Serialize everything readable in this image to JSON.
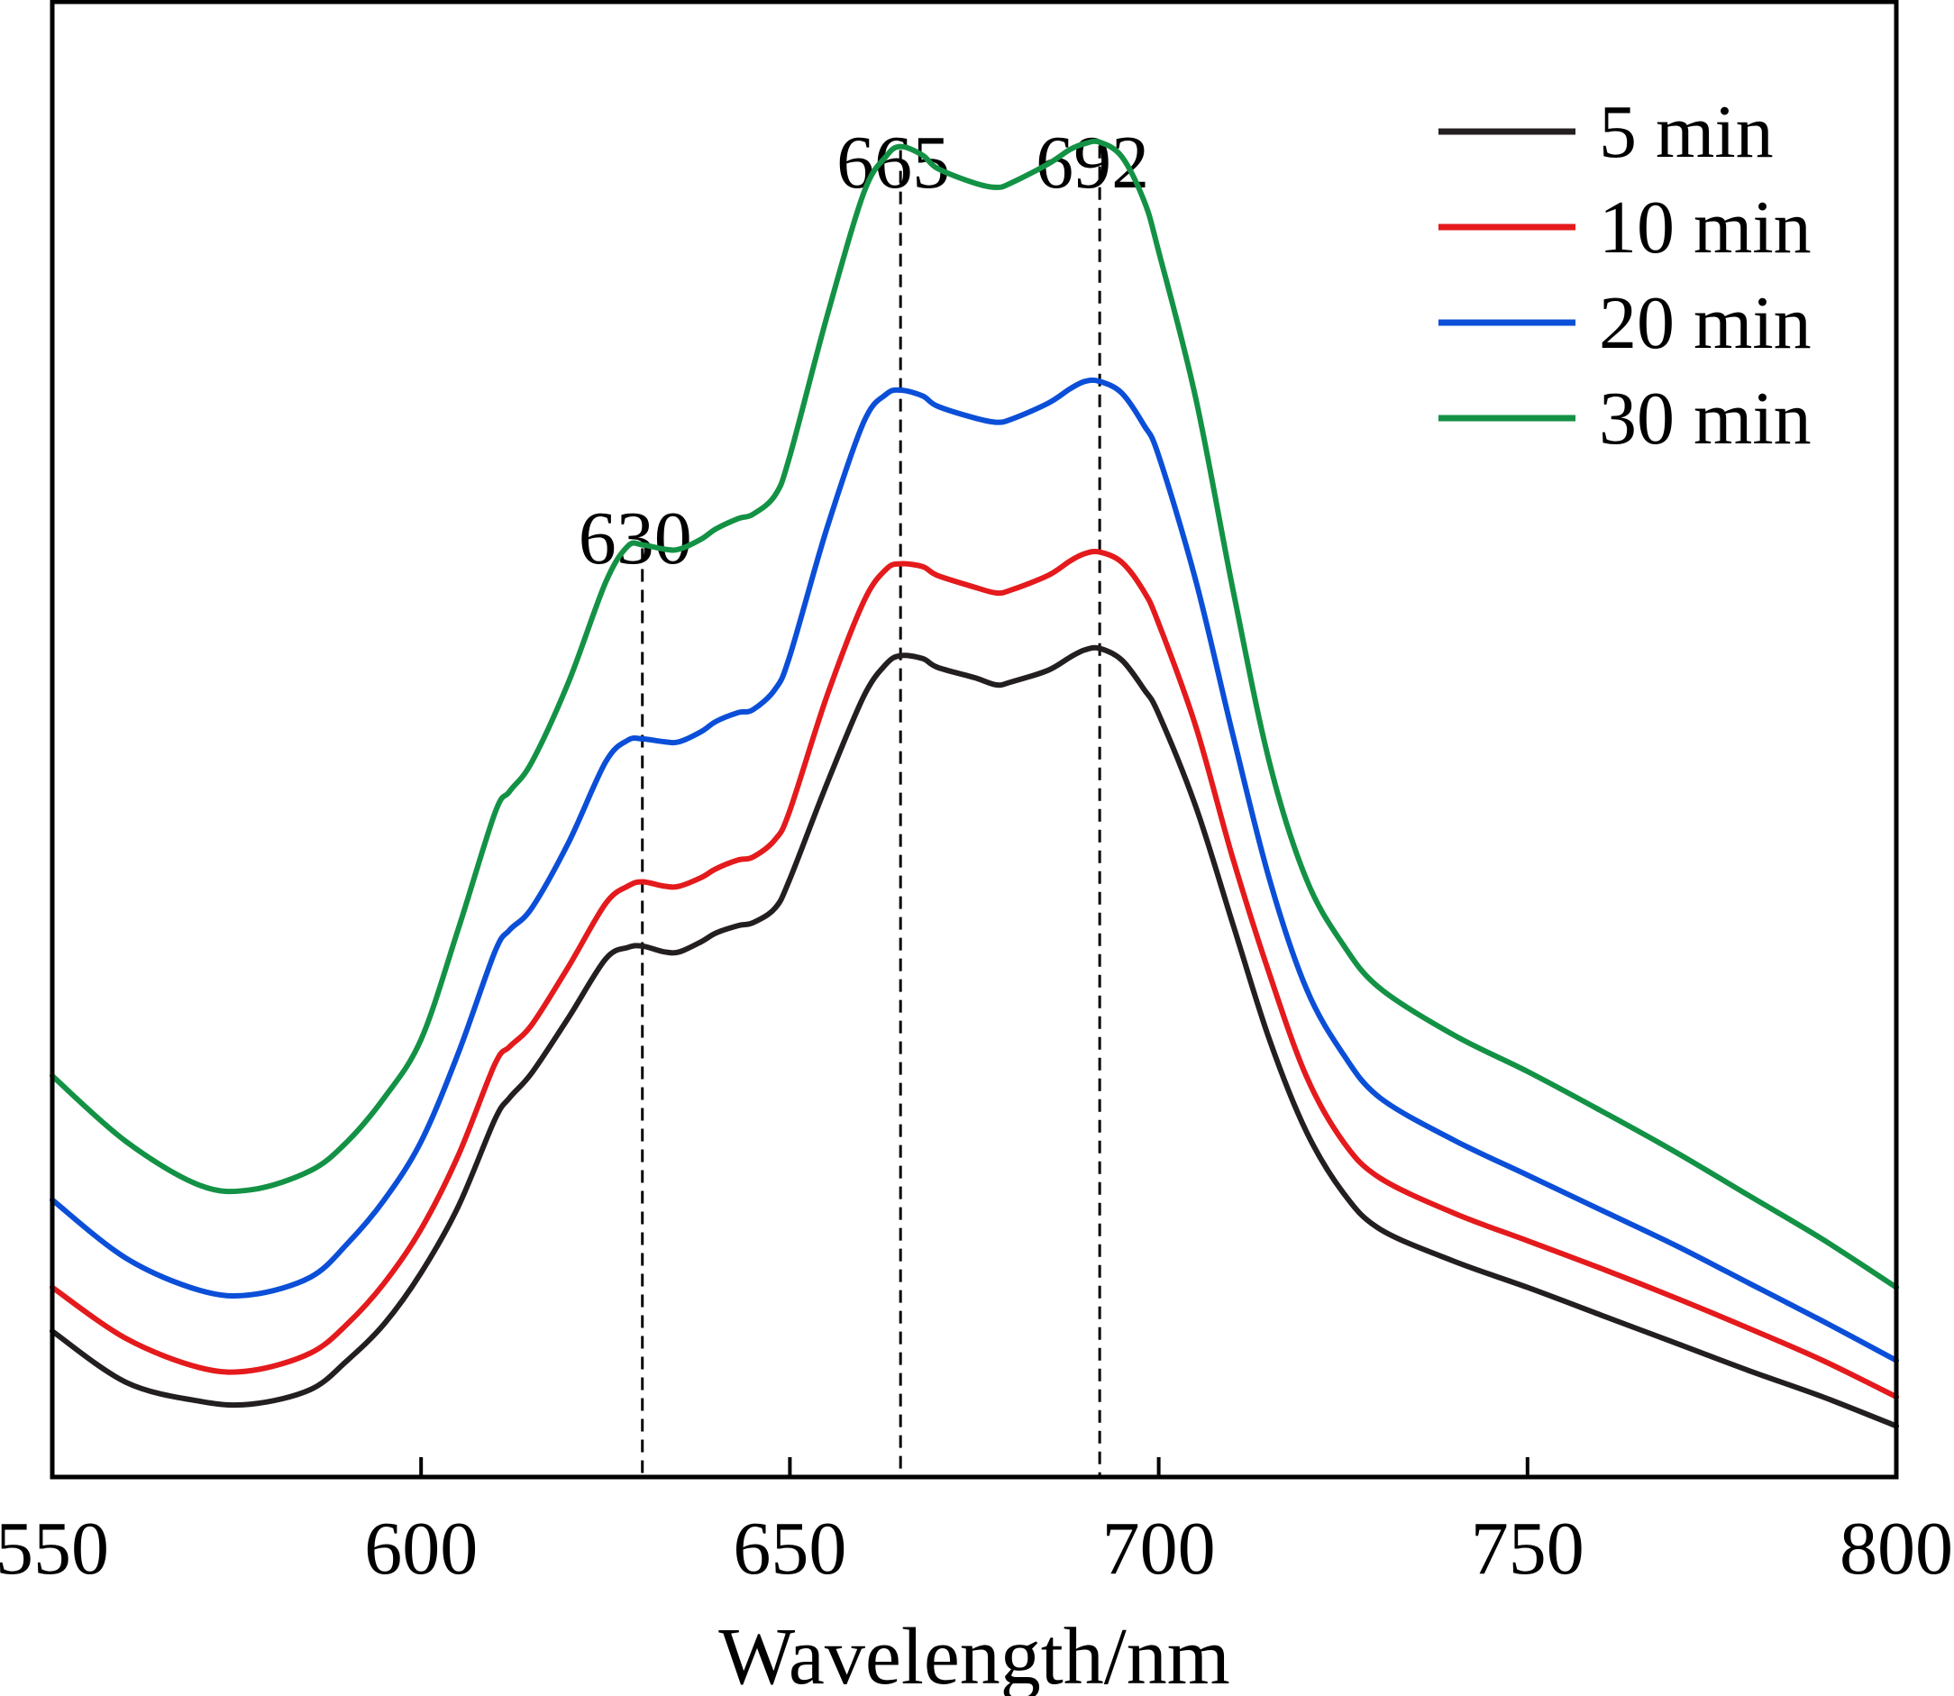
{
  "chart_data": {
    "type": "line",
    "title": "",
    "xlabel": "Wavelength/nm",
    "ylabel": "",
    "xlim": [
      550,
      800
    ],
    "ylim": [
      0,
      1
    ],
    "xticks": [
      550,
      600,
      650,
      700,
      750,
      800
    ],
    "grid": false,
    "legend_position": "top-right",
    "x": [
      550,
      560,
      570,
      577,
      585,
      590,
      595,
      600,
      605,
      610,
      612,
      615,
      620,
      625,
      628,
      630,
      633,
      635,
      638,
      640,
      643,
      645,
      648,
      650,
      655,
      660,
      663,
      665,
      668,
      670,
      675,
      678,
      680,
      685,
      688,
      690,
      692,
      695,
      698,
      700,
      705,
      710,
      715,
      720,
      725,
      730,
      740,
      750,
      760,
      770,
      780,
      790,
      800
    ],
    "series": [
      {
        "name": "5 min",
        "color": "#231f20",
        "values": [
          0.095,
          0.06,
          0.047,
          0.045,
          0.055,
          0.075,
          0.1,
          0.135,
          0.18,
          0.24,
          0.255,
          0.272,
          0.31,
          0.35,
          0.358,
          0.359,
          0.355,
          0.355,
          0.362,
          0.368,
          0.373,
          0.375,
          0.385,
          0.405,
          0.47,
          0.53,
          0.552,
          0.558,
          0.556,
          0.55,
          0.543,
          0.538,
          0.54,
          0.548,
          0.557,
          0.562,
          0.563,
          0.555,
          0.535,
          0.518,
          0.455,
          0.375,
          0.295,
          0.232,
          0.19,
          0.165,
          0.143,
          0.125,
          0.106,
          0.087,
          0.068,
          0.05,
          0.03
        ]
      },
      {
        "name": "10 min",
        "color": "#e41a1c",
        "values": [
          0.125,
          0.09,
          0.07,
          0.068,
          0.08,
          0.1,
          0.128,
          0.165,
          0.215,
          0.278,
          0.29,
          0.305,
          0.345,
          0.388,
          0.4,
          0.403,
          0.4,
          0.4,
          0.406,
          0.412,
          0.418,
          0.42,
          0.432,
          0.452,
          0.53,
          0.595,
          0.617,
          0.621,
          0.619,
          0.613,
          0.605,
          0.601,
          0.603,
          0.613,
          0.623,
          0.628,
          0.629,
          0.622,
          0.602,
          0.58,
          0.51,
          0.42,
          0.34,
          0.27,
          0.225,
          0.2,
          0.176,
          0.157,
          0.138,
          0.118,
          0.097,
          0.075,
          0.05
        ]
      },
      {
        "name": "20 min",
        "color": "#0b4fd8",
        "values": [
          0.185,
          0.145,
          0.123,
          0.12,
          0.132,
          0.155,
          0.185,
          0.225,
          0.285,
          0.355,
          0.37,
          0.385,
          0.43,
          0.485,
          0.5,
          0.501,
          0.499,
          0.499,
          0.506,
          0.513,
          0.519,
          0.521,
          0.535,
          0.558,
          0.645,
          0.718,
          0.737,
          0.74,
          0.736,
          0.729,
          0.721,
          0.718,
          0.72,
          0.731,
          0.741,
          0.746,
          0.746,
          0.738,
          0.716,
          0.695,
          0.61,
          0.505,
          0.405,
          0.33,
          0.285,
          0.255,
          0.226,
          0.202,
          0.178,
          0.154,
          0.128,
          0.102,
          0.075
        ]
      },
      {
        "name": "30 min",
        "color": "#139245",
        "values": [
          0.27,
          0.225,
          0.195,
          0.192,
          0.205,
          0.225,
          0.255,
          0.295,
          0.37,
          0.45,
          0.465,
          0.485,
          0.54,
          0.608,
          0.633,
          0.634,
          0.631,
          0.631,
          0.638,
          0.645,
          0.652,
          0.655,
          0.668,
          0.695,
          0.79,
          0.875,
          0.9,
          0.907,
          0.901,
          0.892,
          0.882,
          0.879,
          0.882,
          0.895,
          0.905,
          0.909,
          0.91,
          0.9,
          0.87,
          0.835,
          0.735,
          0.605,
          0.485,
          0.405,
          0.36,
          0.33,
          0.298,
          0.273,
          0.246,
          0.218,
          0.188,
          0.158,
          0.125
        ]
      }
    ],
    "annotations": [
      {
        "x": 630,
        "label": "630",
        "line_style": "dashed"
      },
      {
        "x": 665,
        "label": "665",
        "line_style": "dashed"
      },
      {
        "x": 692,
        "label": "692",
        "line_style": "dashed"
      }
    ]
  }
}
